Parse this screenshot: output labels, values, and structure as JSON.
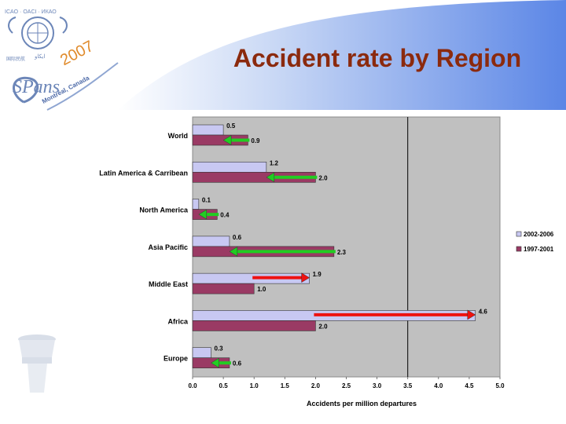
{
  "slide": {
    "title": "Accident rate by Region",
    "logo": {
      "org_text": "ICAO · OACI · ИКАО",
      "arabic_text": "ایکاو",
      "chinese_text": "国际民航",
      "brand": "SPans",
      "year": "2007",
      "location": "Montréal, Canada"
    }
  },
  "chart_data": {
    "type": "bar",
    "orientation": "horizontal",
    "categories": [
      "World",
      "Latin America & Carribean",
      "North America",
      "Asia Pacific",
      "Middle East",
      "Africa",
      "Europe"
    ],
    "series": [
      {
        "name": "2002-2006",
        "values": [
          0.5,
          1.2,
          0.1,
          0.6,
          1.9,
          4.6,
          0.3
        ],
        "value_labels": [
          "0.5",
          "1.2",
          "0.1",
          "0.6",
          "1.9",
          "4.6",
          "0.3"
        ],
        "color": "#C8C8F2"
      },
      {
        "name": "1997-2001",
        "values": [
          0.9,
          2.0,
          0.4,
          2.3,
          1.0,
          2.0,
          0.6
        ],
        "value_labels": [
          "0.9",
          "2.0",
          "0.4",
          "2.3",
          "1.0",
          "2.0",
          "0.6"
        ],
        "color": "#9A3A64"
      }
    ],
    "xlabel": "Accidents per million departures",
    "ylabel": "",
    "xlim": [
      0,
      5
    ],
    "xticks": [
      "0.0",
      "0.5",
      "1.0",
      "1.5",
      "2.0",
      "2.5",
      "3.0",
      "3.5",
      "4.0",
      "4.5",
      "5.0"
    ],
    "reference_line": 3.5,
    "legend_position": "right",
    "plot_background": "#C0C0C0",
    "grid": false,
    "trend_arrows": [
      {
        "category": "World",
        "from": 0.9,
        "to": 0.5,
        "direction": "decrease",
        "color": "#22CC22"
      },
      {
        "category": "Latin America & Carribean",
        "from": 2.0,
        "to": 1.2,
        "direction": "decrease",
        "color": "#22CC22"
      },
      {
        "category": "North America",
        "from": 0.4,
        "to": 0.1,
        "direction": "decrease",
        "color": "#22CC22"
      },
      {
        "category": "Asia Pacific",
        "from": 2.3,
        "to": 0.6,
        "direction": "decrease",
        "color": "#22CC22"
      },
      {
        "category": "Middle East",
        "from": 1.0,
        "to": 1.9,
        "direction": "increase",
        "color": "#EE1111"
      },
      {
        "category": "Africa",
        "from": 2.0,
        "to": 4.6,
        "direction": "increase",
        "color": "#EE1111"
      },
      {
        "category": "Europe",
        "from": 0.6,
        "to": 0.3,
        "direction": "decrease",
        "color": "#22CC22"
      }
    ]
  }
}
